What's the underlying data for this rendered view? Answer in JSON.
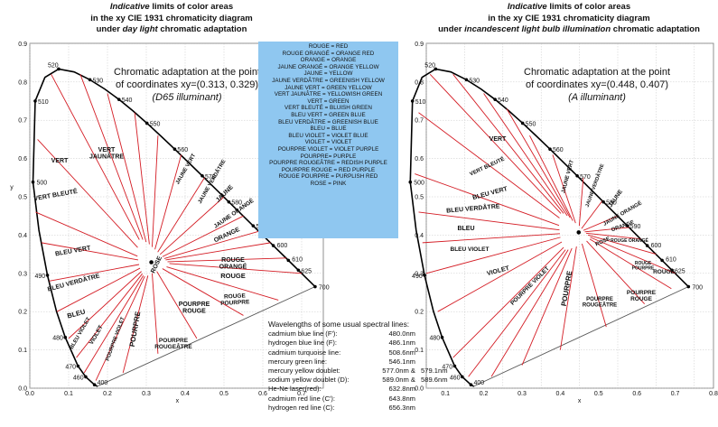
{
  "title_left": {
    "l1a": "Indicative",
    "l1b": " limits of color areas",
    "l2": "in the xy CIE 1931 chromaticity diagram",
    "l3a": "under ",
    "l3b": "day light",
    "l3c": " chromatic adaptation"
  },
  "title_right": {
    "l1a": "Indicative",
    "l1b": " limits of color areas",
    "l2": "in the xy CIE 1931 chromaticity diagram",
    "l3a": "under ",
    "l3b": "incandescent light bulb illumination",
    "l3c": " chromatic adaptation"
  },
  "note_left": {
    "l1": "Chromatic adaptation at the point",
    "l2": "of coordinates xy=(0.313, 0.329)",
    "l3": "(D65 illuminant)"
  },
  "note_right": {
    "l1": "Chromatic adaptation at the point",
    "l2": "of coordinates xy=(0.448, 0.407)",
    "l3": "(A illuminant)"
  },
  "legend": [
    "ROUGE = RED",
    "ROUGE ORANGÉ = ORANGE RED",
    "ORANGE = ORANGE",
    "JAUNE ORANGÉ = ORANGE YELLOW",
    "JAUNE = YELLOW",
    "JAUNE VERDÂTRE = GREENISH YELLOW",
    "JAUNE VERT = GREEN YELLOW",
    "VERT JAUNÂTRE = YELLOWISH GREEN",
    "VERT = GREEN",
    "VERT BLEUTÉ = BLUISH GREEN",
    "BLEU VERT = GREEN BLUE",
    "BLEU VERDÂTRE = GREENISH BLUE",
    "BLEU = BLUE",
    "BLEU VIOLET = VIOLET BLUE",
    "VIOLET = VIOLET",
    "POURPRE VIOLET = VIOLET PURPLE",
    "POURPRE= PURPLE",
    "POURPRE ROUGEÂTRE = REDISH PURPLE",
    "POURPRE ROUGE = RED PURPLE",
    "ROUGE POURPRE = PURPLISH RED",
    "ROSE = PINK"
  ],
  "spectral_lines": {
    "heading": "Wavelengths of some usual spectral lines:",
    "rows": [
      {
        "name": "cadmium blue line (F'):",
        "v": "480.0nm",
        "v2": ""
      },
      {
        "name": "hydrogen blue line (F):",
        "v": "486.1nm",
        "v2": ""
      },
      {
        "name": "cadmium turquoise line:",
        "v": "508.6nm",
        "v2": ""
      },
      {
        "name": "mercury green line:",
        "v": "546.1nm",
        "v2": ""
      },
      {
        "name": "mercury yellow doublet:",
        "v": "577.0nm  &",
        "v2": "579.1nm"
      },
      {
        "name": "sodium yellow doublet (D):",
        "v": "589.0nm  &",
        "v2": "589.6nm"
      },
      {
        "name": "He-Ne laser(red):",
        "v": "632.8nm",
        "v2": ""
      },
      {
        "name": "cadmium red line (C'):",
        "v": "643.8nm",
        "v2": ""
      },
      {
        "name": "hydrogen red line (C):",
        "v": "656.3nm",
        "v2": ""
      }
    ]
  },
  "axes": {
    "x_label": "x",
    "y_label": "y",
    "x_ticks_left": [
      "0.0",
      "0.1",
      "0.2",
      "0.3",
      "0.4",
      "0.5",
      "0.6",
      "0.7"
    ],
    "x_ticks_right": [
      "0.1",
      "0.2",
      "0.3",
      "0.4",
      "0.5",
      "0.6",
      "0.7",
      "0.8"
    ],
    "y_ticks": [
      "0.0",
      "0.1",
      "0.2",
      "0.3",
      "0.4",
      "0.5",
      "0.6",
      "0.7",
      "0.8",
      "0.9"
    ]
  },
  "wavelength_labels": [
    "520",
    "530",
    "540",
    "510",
    "550",
    "560",
    "570",
    "500",
    "580",
    "590",
    "600",
    "610",
    "625",
    "700",
    "490",
    "480",
    "470",
    "460",
    "400"
  ],
  "zones_left": [
    "VERT",
    "VERT\nJAUNÂTRE",
    "JAUNE VERT",
    "JAUNE VERDÂTRE",
    "JAUNE",
    "JAUNE ORANGÉ",
    "ORANGE",
    "ROUGE\nORANGÉ",
    "VERT BLEUTÉ",
    "BLEU VERT",
    "BLEU VERDÂTRE",
    "BLEU",
    "BLEU VIOLET",
    "VIOLET",
    "POURPRE VIOLET",
    "POURPRE",
    "POURPRE\nROUGEÂTRE",
    "POURPRE\nROUGE",
    "ROUGE\nPOURPRE",
    "ROUGE",
    "ROSE"
  ],
  "zones_right": [
    "VERT",
    "VERT BLEUTÉ",
    "BLEU VERT",
    "BLEU VERDÂTRE",
    "BLEU",
    "BLEU VIOLET",
    "VIOLET",
    "POURPRE VIOLET",
    "POURPRE",
    "POURPRE\nROUGEÂTRE",
    "POURPRE\nROUGE",
    "ROUGE",
    "JAUNE VERT",
    "JAUNE VERDÂTRE",
    "JAUNE",
    "JAUNE ORANGÉ",
    "ORANGE",
    "ROUGE ORANGÉ",
    "ROUGE\nPOURPRE",
    "ROSE"
  ],
  "colors": {
    "locus": "#000000",
    "zone_line": "#d41c24",
    "legend_bg": "#8fc7f0",
    "grid": "#b9b9b9"
  }
}
